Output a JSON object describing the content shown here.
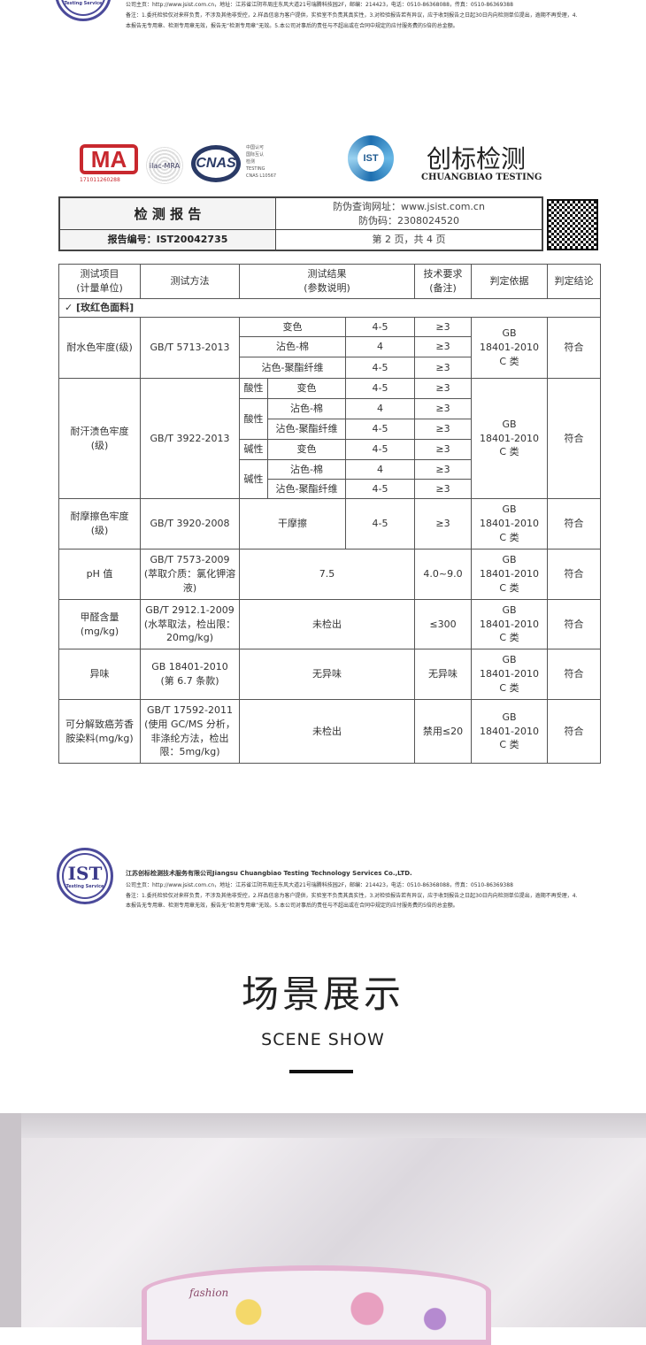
{
  "footer": {
    "seal": "IST",
    "seal_sub": "Testing Service",
    "company": "江苏创标检测技术服务有限公司Jiangsu Chuangbiao Testing Technology Services Co.,LTD.",
    "contact": "公司主页：http://www.jsist.com.cn，地址：江苏省江阴市周庄东风大道21号瑞腾科技园2F，邮编：214423，电话：0510-86368088，传真：0510-86369388",
    "note1": "备注：1.委托检验仅对来样负责，不涉及其他非受控，2.样品信息为客户提供，实验室不负责其真实性，3.对检验报告若有异议，应于收到报告之日起30日内向检测单位提出，逾期不再受理，4.",
    "note2": "本报告无专用章、检测专用章无效，报告无“检测专用章”无效。5.本公司对事后的责任与不超出或在合同中规定的应付服务费的5倍的总金额。"
  },
  "logos": {
    "cma": "MA",
    "cma_num": "171011260288",
    "ilac": "ilac-MRA",
    "cnas": "CNAS",
    "cnas_text": [
      "中国认可",
      "国际互认",
      "检测",
      "TESTING",
      "CNAS L10567"
    ],
    "ist": "IST",
    "brand_cn": "创标检测",
    "brand_en": "CHUANGBIAO TESTING"
  },
  "report": {
    "title": "检 测 报 告",
    "query_url": "防伪查询网址：www.jsist.com.cn",
    "code": "防伪码：2308024520",
    "number": "报告编号：IST20042735",
    "page": "第 2 页，共 4 页"
  },
  "table": {
    "headers": [
      "测试项目\n(计量单位)",
      "测试方法",
      "测试结果\n(参数说明)",
      "技术要求\n(备注)",
      "判定依据",
      "判定结论"
    ],
    "section": "✓  [玫红色面料]",
    "basis": "GB\n18401-2010\nC 类",
    "pass": "符合",
    "water": {
      "item": "耐水色牢度(级)",
      "method": "GB/T 5713-2013",
      "rows": [
        [
          "变色",
          "4-5",
          "≥3"
        ],
        [
          "沾色-棉",
          "4",
          "≥3"
        ],
        [
          "沾色-聚酯纤维",
          "4-5",
          "≥3"
        ]
      ]
    },
    "sweat": {
      "item": "耐汗渍色牢度\n(级)",
      "method": "GB/T 3922-2013",
      "acid": "酸性",
      "alk": "碱性",
      "rows": [
        [
          "变色",
          "4-5",
          "≥3"
        ],
        [
          "沾色-棉",
          "4",
          "≥3"
        ],
        [
          "沾色-聚酯纤维",
          "4-5",
          "≥3"
        ],
        [
          "变色",
          "4-5",
          "≥3"
        ],
        [
          "沾色-棉",
          "4",
          "≥3"
        ],
        [
          "沾色-聚酯纤维",
          "4-5",
          "≥3"
        ]
      ]
    },
    "rub": {
      "item": "耐摩擦色牢度\n(级)",
      "method": "GB/T 3920-2008",
      "cond": "干摩擦",
      "result": "4-5",
      "req": "≥3"
    },
    "ph": {
      "item": "pH 值",
      "method": "GB/T 7573-2009\n(萃取介质：氯化钾溶\n液)",
      "result": "7.5",
      "req": "4.0~9.0"
    },
    "formal": {
      "item": "甲醛含量\n(mg/kg)",
      "method": "GB/T 2912.1-2009\n(水萃取法，检出限：\n20mg/kg)",
      "result": "未检出",
      "req": "≤300"
    },
    "odor": {
      "item": "异味",
      "method": "GB 18401-2010\n(第 6.7 条款)",
      "result": "无异味",
      "req": "无异味"
    },
    "azo": {
      "item": "可分解致癌芳香\n胺染料(mg/kg)",
      "method": "GB/T 17592-2011\n(使用 GC/MS 分析，\n非涤纶方法，检出\n限：5mg/kg)",
      "result": "未检出",
      "req": "禁用≤20"
    }
  },
  "scene": {
    "title": "场景展示",
    "subtitle": "SCENE SHOW",
    "basket_text": "fashion"
  }
}
